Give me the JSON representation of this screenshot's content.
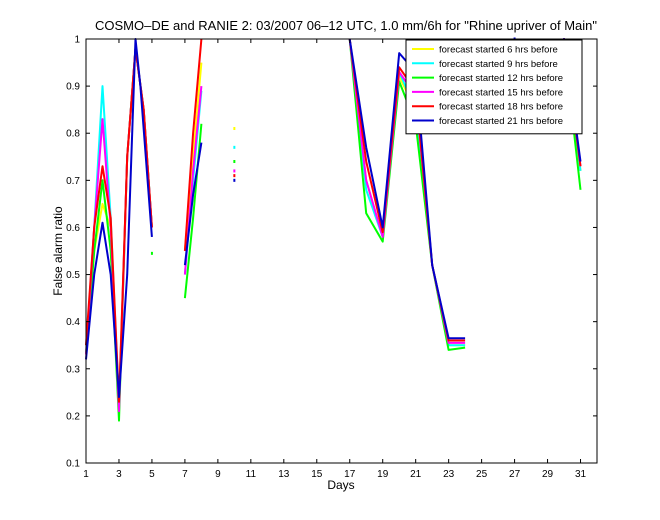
{
  "chart_data": {
    "type": "line",
    "title": "COSMO–DE and RANIE 2: 03/2007 06–12 UTC, 1.0 mm/6h for \"Rhine upriver of Main\"",
    "xlabel": "Days",
    "ylabel": "False alarm ratio",
    "xlim": [
      1,
      32
    ],
    "ylim": [
      0.1,
      1
    ],
    "xticks": [
      "1",
      "3",
      "5",
      "7",
      "9",
      "11",
      "13",
      "15",
      "17",
      "19",
      "21",
      "23",
      "25",
      "27",
      "29",
      "31"
    ],
    "yticks": [
      "0.1",
      "0.2",
      "0.3",
      "0.4",
      "0.5",
      "0.6",
      "0.7",
      "0.8",
      "0.9",
      "1"
    ],
    "legend_position": "top-right",
    "series": [
      {
        "name": "forecast started 6 hrs before",
        "color": "#ffff00",
        "segments": [
          [
            [
              1,
              0.33
            ],
            [
              1.5,
              0.55
            ],
            [
              2,
              0.65
            ],
            [
              2.5,
              0.6
            ],
            [
              3,
              0.22
            ],
            [
              3.5,
              0.75
            ],
            [
              4,
              0.98
            ],
            [
              4.5,
              0.85
            ],
            [
              5,
              0.6
            ]
          ],
          [
            [
              7,
              0.55
            ],
            [
              7.5,
              0.75
            ],
            [
              8,
              0.95
            ]
          ],
          [
            [
              17,
              1.0
            ],
            [
              18,
              0.7
            ],
            [
              19,
              0.58
            ],
            [
              20,
              0.92
            ],
            [
              21,
              0.85
            ],
            [
              22,
              0.52
            ],
            [
              23,
              0.35
            ],
            [
              24,
              0.35
            ]
          ],
          [
            [
              29,
              0.92
            ],
            [
              30,
              1.0
            ],
            [
              31,
              0.72
            ]
          ]
        ],
        "points": [
          [
            10,
            0.81
          ]
        ]
      },
      {
        "name": "forecast started 9 hrs before",
        "color": "#00ffff",
        "segments": [
          [
            [
              1,
              0.33
            ],
            [
              1.5,
              0.6
            ],
            [
              2,
              0.9
            ],
            [
              2.5,
              0.62
            ],
            [
              3,
              0.22
            ],
            [
              3.5,
              0.75
            ],
            [
              4,
              0.98
            ],
            [
              4.5,
              0.85
            ],
            [
              5,
              0.6
            ]
          ],
          [
            [
              7,
              0.5
            ],
            [
              7.5,
              0.7
            ],
            [
              8,
              0.89
            ]
          ],
          [
            [
              17,
              1.0
            ],
            [
              18,
              0.68
            ],
            [
              19,
              0.58
            ],
            [
              20,
              0.93
            ],
            [
              21,
              0.85
            ],
            [
              22,
              0.52
            ],
            [
              23,
              0.35
            ],
            [
              24,
              0.35
            ]
          ],
          [
            [
              29,
              0.93
            ],
            [
              30,
              1.0
            ],
            [
              31,
              0.72
            ]
          ]
        ],
        "points": [
          [
            10,
            0.77
          ]
        ]
      },
      {
        "name": "forecast started 12 hrs before",
        "color": "#00ff00",
        "segments": [
          [
            [
              1,
              0.33
            ],
            [
              1.5,
              0.55
            ],
            [
              2,
              0.7
            ],
            [
              2.5,
              0.55
            ],
            [
              3,
              0.19
            ],
            [
              3.5,
              0.75
            ],
            [
              4,
              0.98
            ],
            [
              4.5,
              0.85
            ],
            [
              5,
              0.6
            ]
          ],
          [
            [
              7,
              0.45
            ],
            [
              7.5,
              0.62
            ],
            [
              8,
              0.82
            ]
          ],
          [
            [
              17,
              1.0
            ],
            [
              18,
              0.63
            ],
            [
              19,
              0.57
            ],
            [
              20,
              0.91
            ],
            [
              21,
              0.82
            ],
            [
              22,
              0.52
            ],
            [
              23,
              0.34
            ],
            [
              24,
              0.345
            ]
          ],
          [
            [
              29,
              0.91
            ],
            [
              30,
              0.99
            ],
            [
              31,
              0.68
            ]
          ]
        ],
        "points": [
          [
            10,
            0.74
          ],
          [
            5,
            0.545
          ]
        ]
      },
      {
        "name": "forecast started 15 hrs before",
        "color": "#ff00ff",
        "segments": [
          [
            [
              1,
              0.33
            ],
            [
              1.5,
              0.6
            ],
            [
              2,
              0.83
            ],
            [
              2.5,
              0.6
            ],
            [
              3,
              0.21
            ],
            [
              3.5,
              0.75
            ],
            [
              4,
              0.98
            ],
            [
              4.5,
              0.85
            ],
            [
              5,
              0.6
            ]
          ],
          [
            [
              7,
              0.5
            ],
            [
              7.5,
              0.72
            ],
            [
              8,
              0.9
            ]
          ],
          [
            [
              17,
              1.0
            ],
            [
              18,
              0.7
            ],
            [
              19,
              0.58
            ],
            [
              20,
              0.93
            ],
            [
              21,
              0.88
            ],
            [
              22,
              0.52
            ],
            [
              23,
              0.355
            ],
            [
              24,
              0.355
            ]
          ],
          [
            [
              29,
              0.88
            ],
            [
              30,
              1.0
            ],
            [
              31,
              0.73
            ]
          ]
        ],
        "points": [
          [
            10,
            0.72
          ]
        ]
      },
      {
        "name": "forecast started 18 hrs before",
        "color": "#ff0000",
        "segments": [
          [
            [
              1,
              0.35
            ],
            [
              1.5,
              0.6
            ],
            [
              2,
              0.73
            ],
            [
              2.5,
              0.62
            ],
            [
              3,
              0.23
            ],
            [
              3.5,
              0.75
            ],
            [
              4,
              0.98
            ],
            [
              4.5,
              0.85
            ],
            [
              5,
              0.6
            ]
          ],
          [
            [
              7,
              0.55
            ],
            [
              7.5,
              0.8
            ],
            [
              8,
              1.0
            ]
          ],
          [
            [
              17,
              1.0
            ],
            [
              18,
              0.74
            ],
            [
              19,
              0.59
            ],
            [
              20,
              0.94
            ],
            [
              21,
              0.89
            ],
            [
              22,
              0.52
            ],
            [
              23,
              0.36
            ],
            [
              24,
              0.36
            ]
          ],
          [
            [
              29,
              0.9
            ],
            [
              30,
              1.0
            ],
            [
              31,
              0.73
            ]
          ]
        ],
        "points": [
          [
            10,
            0.71
          ]
        ]
      },
      {
        "name": "forecast started 21 hrs before",
        "color": "#0000cc",
        "segments": [
          [
            [
              1,
              0.32
            ],
            [
              1.5,
              0.5
            ],
            [
              2,
              0.61
            ],
            [
              2.5,
              0.5
            ],
            [
              3,
              0.24
            ],
            [
              3.5,
              0.5
            ],
            [
              4,
              1.0
            ],
            [
              4.3,
              0.9
            ],
            [
              5,
              0.58
            ]
          ],
          [
            [
              7,
              0.52
            ],
            [
              7.5,
              0.67
            ],
            [
              8,
              0.78
            ]
          ],
          [
            [
              17,
              1.0
            ],
            [
              18,
              0.77
            ],
            [
              19,
              0.6
            ],
            [
              20,
              0.97
            ],
            [
              21,
              0.93
            ],
            [
              22,
              0.52
            ],
            [
              23,
              0.365
            ],
            [
              24,
              0.365
            ]
          ],
          [
            [
              29,
              0.95
            ],
            [
              30,
              1.0
            ],
            [
              31,
              0.74
            ]
          ]
        ],
        "points": [
          [
            10,
            0.7
          ],
          [
            27,
            1.0
          ]
        ]
      }
    ]
  }
}
